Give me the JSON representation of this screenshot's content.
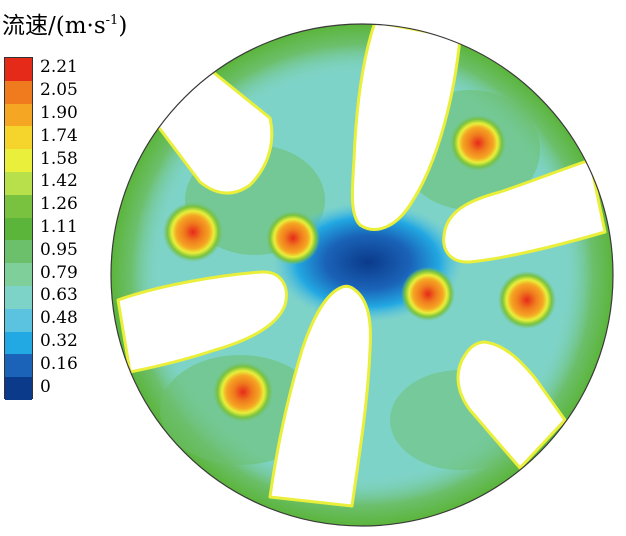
{
  "chart_data": {
    "type": "heatmap",
    "title": "流速/(m·s",
    "title_unit_exponent": "-1",
    "colorbar": {
      "ticks": [
        "2.21",
        "2.05",
        "1.90",
        "1.74",
        "1.58",
        "1.42",
        "1.26",
        "1.11",
        "0.95",
        "0.79",
        "0.63",
        "0.48",
        "0.32",
        "0.16",
        "0"
      ],
      "colors": [
        "#e62a1a",
        "#f07a1e",
        "#f5a623",
        "#f5d42c",
        "#e9ef3a",
        "#b7e04a",
        "#79c23f",
        "#5bb53b",
        "#6cbf6b",
        "#7ecf9a",
        "#7ed3c8",
        "#5bc3e0",
        "#22a8e2",
        "#1a63b8",
        "#0b3a8a"
      ],
      "range": [
        0,
        2.21
      ]
    },
    "hotspots": [
      {
        "name": "upper-right",
        "peak": 2.21
      },
      {
        "name": "left-upper",
        "peak": 2.05
      },
      {
        "name": "center-left",
        "peak": 2.05
      },
      {
        "name": "center-right",
        "peak": 2.05
      },
      {
        "name": "right",
        "peak": 2.05
      },
      {
        "name": "lower-left",
        "peak": 2.21
      }
    ],
    "center_minimum": 0.16
  }
}
